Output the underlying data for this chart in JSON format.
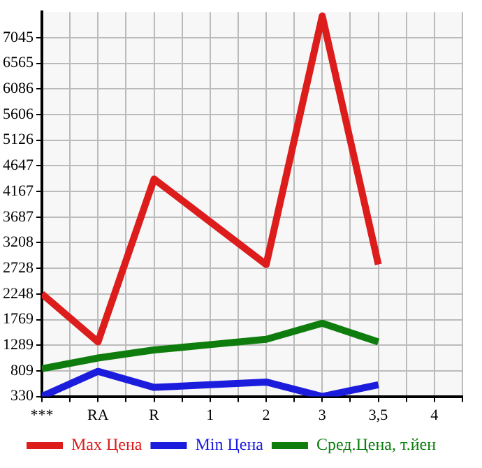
{
  "chart_data": {
    "type": "line",
    "categories": [
      "***",
      "RA",
      "R",
      "1",
      "2",
      "3",
      "3,5",
      "4"
    ],
    "series": [
      {
        "name": "Max Цена",
        "color": "#dd1c1c",
        "values": [
          2250,
          1350,
          4400,
          3600,
          2800,
          7450,
          2800,
          null
        ]
      },
      {
        "name": "Min Цена",
        "color": "#1c1cdd",
        "values": [
          330,
          800,
          500,
          550,
          600,
          330,
          550,
          null
        ]
      },
      {
        "name": "Сред.Цена, т.йен",
        "color": "#0e7d0e",
        "values": [
          850,
          1050,
          1200,
          1300,
          1400,
          1700,
          1350,
          null
        ]
      }
    ],
    "ylim": [
      330,
      7525
    ],
    "yticks": [
      330,
      809,
      1289,
      1769,
      2248,
      2728,
      3208,
      3687,
      4167,
      4647,
      5126,
      5606,
      6086,
      6565,
      7045
    ],
    "grid": true,
    "legend": "bottom",
    "marker": "none",
    "line_style": "solid"
  }
}
